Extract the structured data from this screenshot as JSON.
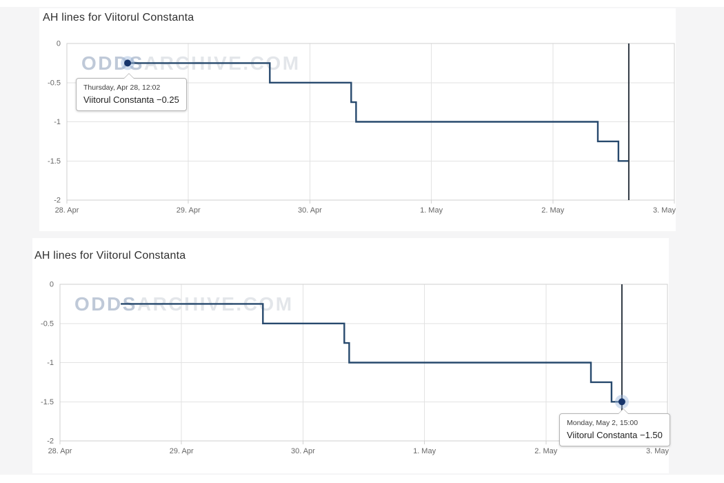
{
  "page": {
    "background": "#f5f5f6"
  },
  "chart_data": [
    {
      "type": "line",
      "step": "after",
      "title": "AH lines for Viitorul Constanta",
      "series": [
        {
          "name": "Viitorul Constanta",
          "points": [
            {
              "t": 0.5,
              "v": -0.25
            },
            {
              "t": 1.67,
              "v": -0.5
            },
            {
              "t": 2.34,
              "v": -0.75
            },
            {
              "t": 2.38,
              "v": -1.0
            },
            {
              "t": 4.37,
              "v": -1.25
            },
            {
              "t": 4.54,
              "v": -1.5
            }
          ]
        }
      ],
      "line_end_t": 4.625,
      "kickoff_t": 4.625,
      "marker": {
        "t": 0.5,
        "v": -0.25
      },
      "tooltip": {
        "line1": "Thursday, Apr 28, 12:02",
        "line2": "Viitorul Constanta −0.25"
      },
      "watermark": {
        "part1": "ODDS",
        "part2": "ARCHIVE.COM"
      },
      "x_axis": {
        "range_days": [
          0,
          5
        ],
        "ticks": [
          {
            "label": "28. Apr",
            "t": 0
          },
          {
            "label": "29. Apr",
            "t": 1
          },
          {
            "label": "30. Apr",
            "t": 2
          },
          {
            "label": "1. May",
            "t": 3
          },
          {
            "label": "2. May",
            "t": 4
          },
          {
            "label": "3. May",
            "t": 5
          }
        ]
      },
      "y_axis": {
        "range": [
          -2,
          0
        ],
        "ticks": [
          {
            "label": "0",
            "v": 0
          },
          {
            "label": "-0.5",
            "v": -0.5
          },
          {
            "label": "-1",
            "v": -1
          },
          {
            "label": "-1.5",
            "v": -1.5
          },
          {
            "label": "-2",
            "v": -2
          }
        ]
      },
      "grid": true,
      "legend": "none",
      "colors": {
        "line": "#27496d",
        "marker": "#17356b",
        "halo": "#9db8dc",
        "kickoff_line": "#2e3742",
        "grid": "#e2e2e2",
        "axis_border": "#cfcfcf",
        "tick_label": "#666666"
      }
    },
    {
      "type": "line",
      "step": "after",
      "title": "AH lines for Viitorul Constanta",
      "series": [
        {
          "name": "Viitorul Constanta",
          "points": [
            {
              "t": 0.5,
              "v": -0.25
            },
            {
              "t": 1.67,
              "v": -0.5
            },
            {
              "t": 2.34,
              "v": -0.75
            },
            {
              "t": 2.38,
              "v": -1.0
            },
            {
              "t": 4.37,
              "v": -1.25
            },
            {
              "t": 4.54,
              "v": -1.5
            }
          ]
        }
      ],
      "line_end_t": 4.625,
      "kickoff_t": 4.625,
      "marker": {
        "t": 4.625,
        "v": -1.5
      },
      "tooltip": {
        "line1": "Monday, May 2, 15:00",
        "line2": "Viitorul Constanta −1.50"
      },
      "watermark": {
        "part1": "ODDS",
        "part2": "ARCHIVE.COM"
      },
      "x_axis": {
        "range_days": [
          0,
          5
        ],
        "ticks": [
          {
            "label": "28. Apr",
            "t": 0
          },
          {
            "label": "29. Apr",
            "t": 1
          },
          {
            "label": "30. Apr",
            "t": 2
          },
          {
            "label": "1. May",
            "t": 3
          },
          {
            "label": "2. May",
            "t": 4
          },
          {
            "label": "3. May",
            "t": 5
          }
        ]
      },
      "y_axis": {
        "range": [
          -2,
          0
        ],
        "ticks": [
          {
            "label": "0",
            "v": 0
          },
          {
            "label": "-0.5",
            "v": -0.5
          },
          {
            "label": "-1",
            "v": -1
          },
          {
            "label": "-1.5",
            "v": -1.5
          },
          {
            "label": "-2",
            "v": -2
          }
        ]
      },
      "grid": true,
      "legend": "none",
      "colors": {
        "line": "#27496d",
        "marker": "#17356b",
        "halo": "#9db8dc",
        "kickoff_line": "#2e3742",
        "grid": "#e2e2e2",
        "axis_border": "#cfcfcf",
        "tick_label": "#666666"
      }
    }
  ]
}
